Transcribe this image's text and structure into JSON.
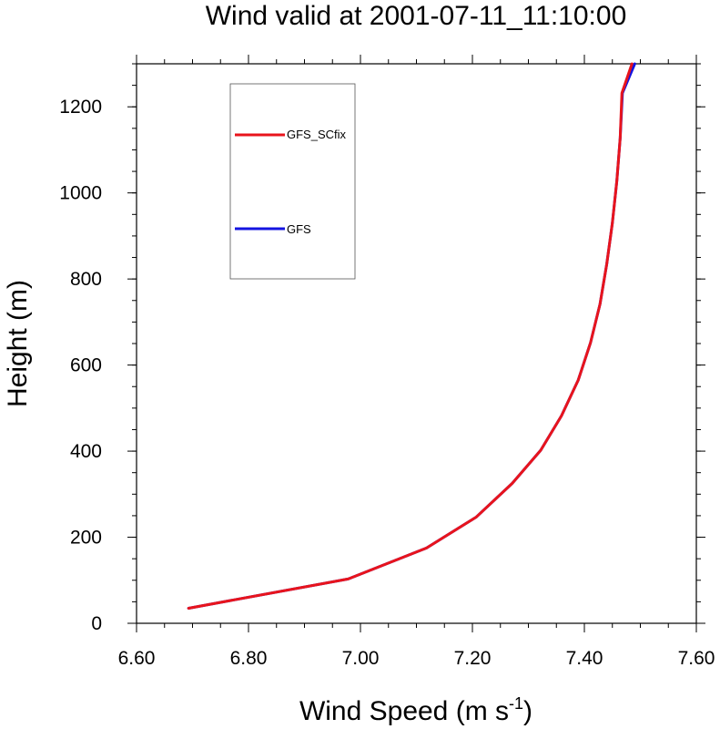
{
  "chart_data": {
    "type": "line",
    "title": "Wind valid at 2001-07-11_11:10:00",
    "xlabel": "Wind Speed (m s",
    "xlabel_superscript": "-1",
    "xlabel_suffix": ")",
    "ylabel": "Height (m)",
    "xlim": [
      6.6,
      7.6
    ],
    "ylim": [
      0,
      1300
    ],
    "x_ticks": [
      6.6,
      6.8,
      7.0,
      7.2,
      7.4,
      7.6
    ],
    "x_tick_labels": [
      "6.60",
      "6.80",
      "7.00",
      "7.20",
      "7.40",
      "7.60"
    ],
    "y_ticks": [
      0,
      200,
      400,
      600,
      800,
      1000,
      1200
    ],
    "y_tick_labels": [
      "0",
      "200",
      "400",
      "600",
      "800",
      "1000",
      "1200"
    ],
    "grid": false,
    "legend_position": "top-left",
    "series": [
      {
        "name": "GFS_SCfix",
        "color": "#e8141c",
        "points": [
          [
            6.693,
            35
          ],
          [
            6.978,
            103
          ],
          [
            7.118,
            175
          ],
          [
            7.207,
            247
          ],
          [
            7.271,
            325
          ],
          [
            7.322,
            402
          ],
          [
            7.359,
            482
          ],
          [
            7.389,
            565
          ],
          [
            7.411,
            652
          ],
          [
            7.428,
            742
          ],
          [
            7.44,
            835
          ],
          [
            7.45,
            930
          ],
          [
            7.458,
            1028
          ],
          [
            7.464,
            1128
          ],
          [
            7.467,
            1232
          ],
          [
            7.485,
            1300
          ]
        ]
      },
      {
        "name": "GFS",
        "color": "#1414e0",
        "points": [
          [
            6.693,
            35
          ],
          [
            6.978,
            103
          ],
          [
            7.118,
            175
          ],
          [
            7.207,
            247
          ],
          [
            7.271,
            325
          ],
          [
            7.322,
            402
          ],
          [
            7.359,
            482
          ],
          [
            7.389,
            565
          ],
          [
            7.411,
            652
          ],
          [
            7.428,
            742
          ],
          [
            7.44,
            835
          ],
          [
            7.45,
            930
          ],
          [
            7.458,
            1028
          ],
          [
            7.464,
            1128
          ],
          [
            7.468,
            1232
          ],
          [
            7.49,
            1300
          ]
        ]
      }
    ]
  }
}
